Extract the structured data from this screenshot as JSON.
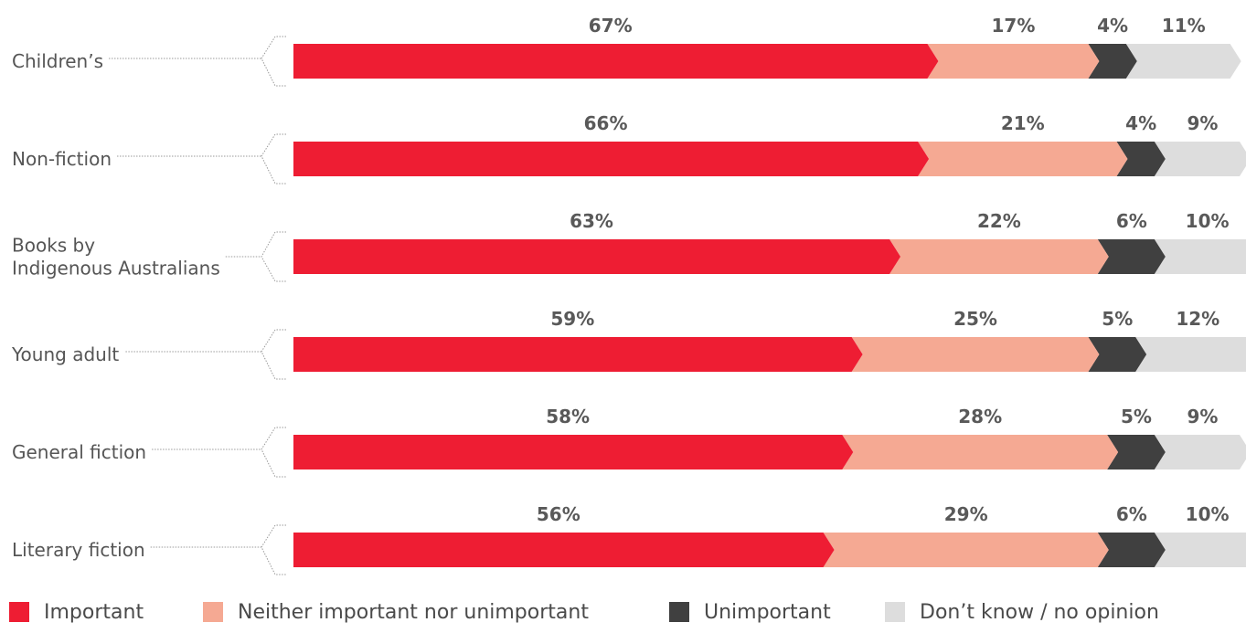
{
  "chart_data": {
    "type": "bar",
    "orientation": "horizontal",
    "stacked": true,
    "categories": [
      [
        "Children’s"
      ],
      [
        "Non-fiction"
      ],
      [
        "Books by",
        "Indigenous Australians"
      ],
      [
        "Young adult"
      ],
      [
        "General fiction"
      ],
      [
        "Literary fiction"
      ]
    ],
    "series": [
      {
        "name": "Important",
        "color": "#ee1d33",
        "values": [
          67,
          66,
          63,
          59,
          58,
          56
        ]
      },
      {
        "name": "Neither important nor unimportant",
        "color": "#f5a993",
        "values": [
          17,
          21,
          22,
          25,
          28,
          29
        ]
      },
      {
        "name": "Unimportant",
        "color": "#404040",
        "values": [
          4,
          4,
          6,
          5,
          5,
          6
        ]
      },
      {
        "name": "Don’t know / no opinion",
        "color": "#dddddd",
        "values": [
          11,
          9,
          10,
          12,
          9,
          10
        ]
      }
    ],
    "value_suffix": "%",
    "legend_position": "bottom",
    "grid": false
  }
}
